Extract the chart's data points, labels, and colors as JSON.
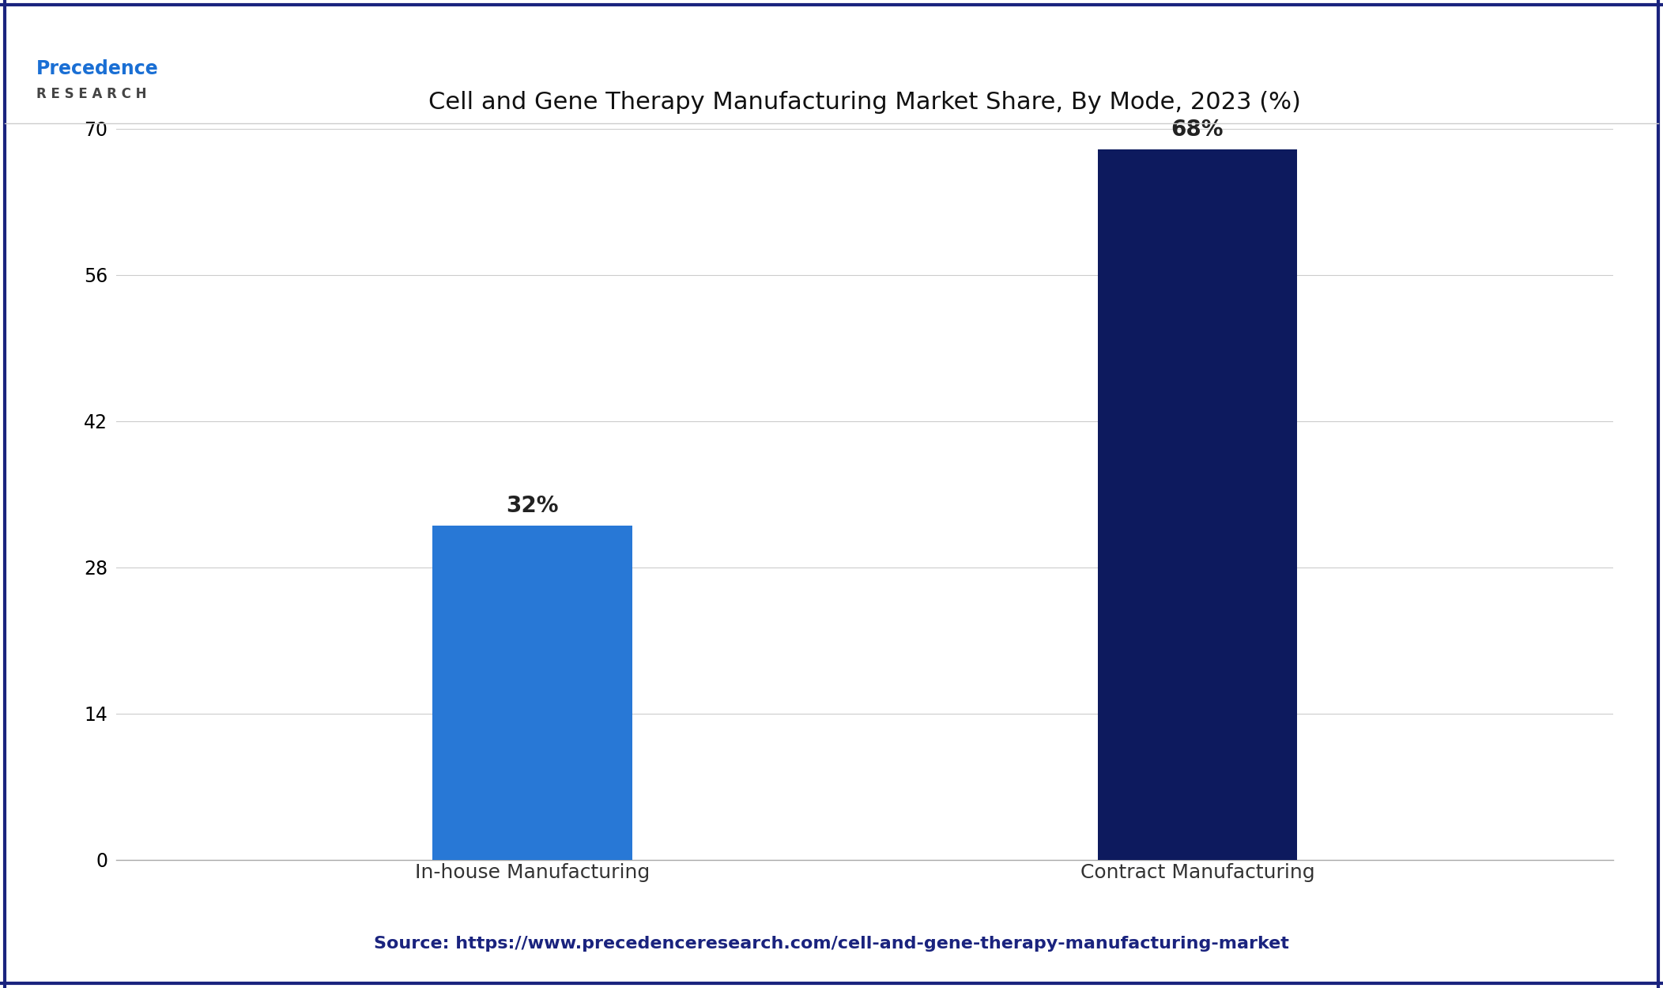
{
  "title": "Cell and Gene Therapy Manufacturing Market Share, By Mode, 2023 (%)",
  "categories": [
    "In-house Manufacturing",
    "Contract Manufacturing"
  ],
  "values": [
    32,
    68
  ],
  "labels": [
    "32%",
    "68%"
  ],
  "bar_colors": [
    "#2878d6",
    "#0d1a5e"
  ],
  "ylim": [
    0,
    70
  ],
  "yticks": [
    0,
    14,
    28,
    42,
    56,
    70
  ],
  "background_color": "#ffffff",
  "plot_bg_color": "#ffffff",
  "grid_color": "#cccccc",
  "title_fontsize": 22,
  "tick_fontsize": 17,
  "label_fontsize": 18,
  "bar_label_fontsize": 20,
  "source_text": "Source: https://www.precedenceresearch.com/cell-and-gene-therapy-manufacturing-market",
  "source_color": "#1a237e",
  "source_fontsize": 16,
  "border_color": "#1a237e",
  "border_width": 3,
  "logo_text": "Precedence",
  "logo_color": "#1a6fd4",
  "logo_sub_text": "R E S E A R C H",
  "logo_sub_color": "#444444"
}
